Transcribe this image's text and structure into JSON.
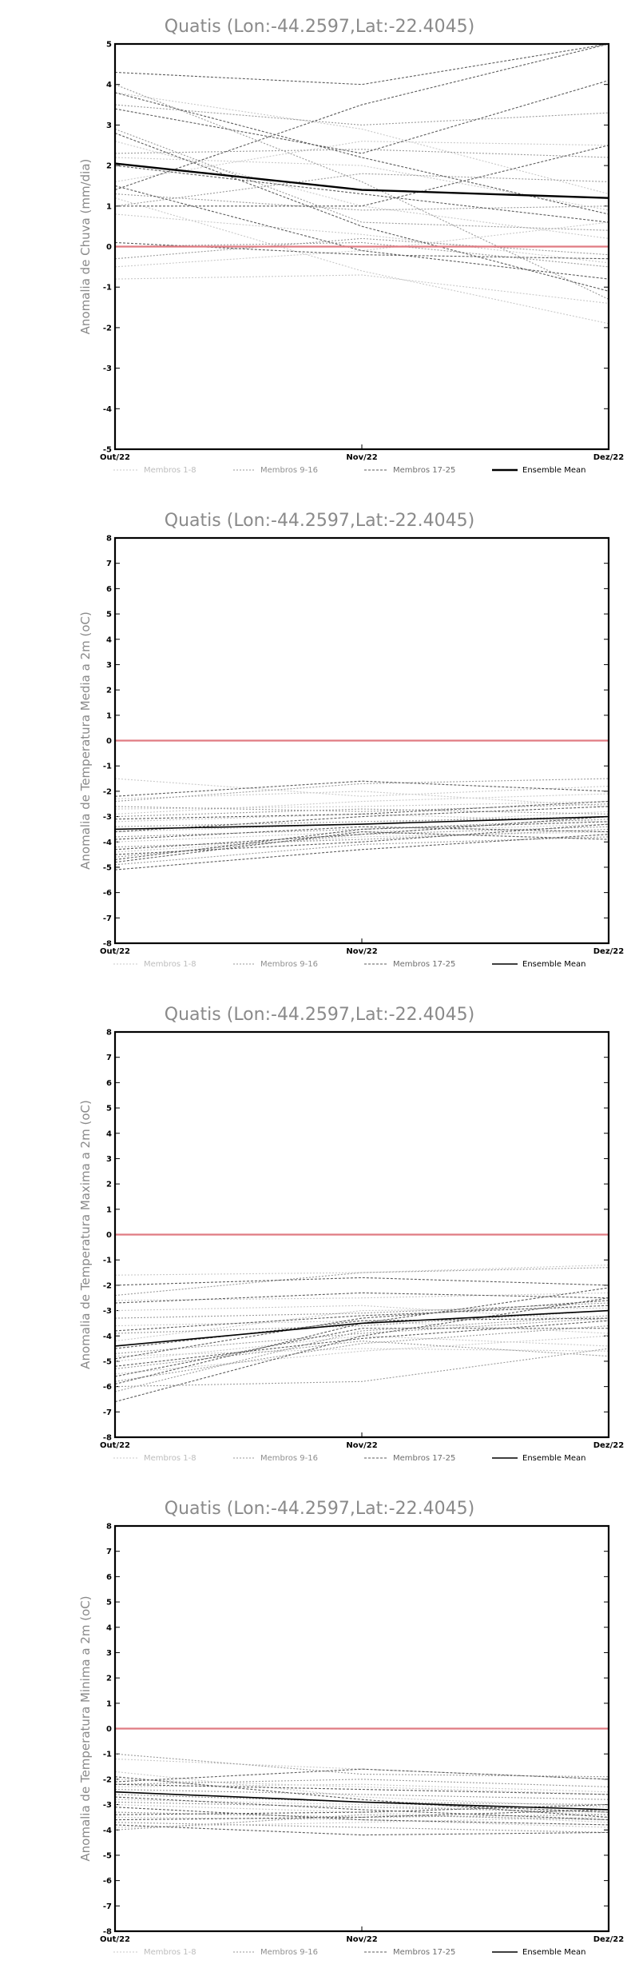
{
  "chart_data": [
    {
      "type": "line",
      "title": "Quatis (Lon:-44.2597,Lat:-22.4045)",
      "ylabel": "Anomalia de Chuva (mm/dia)",
      "x": [
        "Out/22",
        "Nov/22",
        "Dez/22"
      ],
      "ylim": [
        -5,
        5
      ],
      "yticks": [
        -5,
        -4,
        -3,
        -2,
        -1,
        0,
        1,
        2,
        3,
        4,
        5
      ],
      "reference_line": 0,
      "legend": [
        "Membros 1-8",
        "Membros 9-16",
        "Membros 17-25",
        "Ensemble Mean"
      ],
      "legend_placement": "bottom",
      "ensemble_mean": [
        2.05,
        1.4,
        1.2
      ],
      "members": [
        {
          "group": 1,
          "values": [
            3.8,
            2.9,
            1.3
          ]
        },
        {
          "group": 1,
          "values": [
            2.6,
            1.0,
            0.2
          ]
        },
        {
          "group": 1,
          "values": [
            1.2,
            -0.6,
            -1.9
          ]
        },
        {
          "group": 1,
          "values": [
            -0.5,
            -0.1,
            0.6
          ]
        },
        {
          "group": 1,
          "values": [
            2.2,
            2.0,
            0.9
          ]
        },
        {
          "group": 1,
          "values": [
            0.8,
            0.3,
            -0.4
          ]
        },
        {
          "group": 1,
          "values": [
            -0.8,
            -0.7,
            -1.4
          ]
        },
        {
          "group": 1,
          "values": [
            1.6,
            2.6,
            2.5
          ]
        },
        {
          "group": 2,
          "values": [
            3.5,
            3.0,
            3.3
          ]
        },
        {
          "group": 2,
          "values": [
            1.0,
            1.8,
            1.6
          ]
        },
        {
          "group": 2,
          "values": [
            2.9,
            0.6,
            0.4
          ]
        },
        {
          "group": 2,
          "values": [
            0.0,
            0.1,
            -0.5
          ]
        },
        {
          "group": 2,
          "values": [
            1.3,
            0.9,
            1.0
          ]
        },
        {
          "group": 2,
          "values": [
            2.3,
            2.4,
            2.2
          ]
        },
        {
          "group": 2,
          "values": [
            -0.3,
            0.2,
            -0.2
          ]
        },
        {
          "group": 2,
          "values": [
            4.0,
            1.6,
            -1.3
          ]
        },
        {
          "group": 3,
          "values": [
            4.3,
            4.0,
            5.0
          ]
        },
        {
          "group": 3,
          "values": [
            3.8,
            2.2,
            0.8
          ]
        },
        {
          "group": 3,
          "values": [
            1.4,
            3.5,
            5.0
          ]
        },
        {
          "group": 3,
          "values": [
            2.8,
            0.5,
            -1.1
          ]
        },
        {
          "group": 3,
          "values": [
            0.1,
            -0.2,
            -0.3
          ]
        },
        {
          "group": 3,
          "values": [
            1.0,
            1.0,
            2.5
          ]
        },
        {
          "group": 3,
          "values": [
            3.4,
            2.3,
            4.1
          ]
        },
        {
          "group": 3,
          "values": [
            2.0,
            1.3,
            0.6
          ]
        },
        {
          "group": 3,
          "values": [
            1.5,
            -0.1,
            -0.8
          ]
        }
      ]
    },
    {
      "type": "line",
      "title": "Quatis (Lon:-44.2597,Lat:-22.4045)",
      "ylabel": "Anomalia de Temperatura Media a 2m (oC)",
      "x": [
        "Out/22",
        "Nov/22",
        "Dez/22"
      ],
      "ylim": [
        -8,
        8
      ],
      "yticks": [
        -8,
        -7,
        -6,
        -5,
        -4,
        -3,
        -2,
        -1,
        0,
        1,
        2,
        3,
        4,
        5,
        6,
        7,
        8
      ],
      "reference_line": 0,
      "legend": [
        "Membros 1-8",
        "Membros 9-16",
        "Membros 17-25",
        "Ensemble Mean"
      ],
      "legend_placement": "bottom",
      "ensemble_mean": [
        -3.5,
        -3.3,
        -3.0
      ],
      "members": [
        {
          "group": 1,
          "values": [
            -1.5,
            -2.2,
            -1.8
          ]
        },
        {
          "group": 1,
          "values": [
            -2.7,
            -2.6,
            -2.4
          ]
        },
        {
          "group": 1,
          "values": [
            -3.2,
            -2.9,
            -3.2
          ]
        },
        {
          "group": 1,
          "values": [
            -4.0,
            -3.6,
            -3.3
          ]
        },
        {
          "group": 1,
          "values": [
            -2.9,
            -2.4,
            -2.1
          ]
        },
        {
          "group": 1,
          "values": [
            -4.4,
            -3.8,
            -3.6
          ]
        },
        {
          "group": 1,
          "values": [
            -3.6,
            -3.3,
            -2.8
          ]
        },
        {
          "group": 1,
          "values": [
            -2.3,
            -2.0,
            -2.6
          ]
        },
        {
          "group": 2,
          "values": [
            -2.4,
            -1.7,
            -1.5
          ]
        },
        {
          "group": 2,
          "values": [
            -3.8,
            -3.5,
            -3.1
          ]
        },
        {
          "group": 2,
          "values": [
            -4.2,
            -3.9,
            -3.5
          ]
        },
        {
          "group": 2,
          "values": [
            -3.0,
            -2.7,
            -2.9
          ]
        },
        {
          "group": 2,
          "values": [
            -4.6,
            -3.7,
            -3.4
          ]
        },
        {
          "group": 2,
          "values": [
            -3.4,
            -3.2,
            -3.0
          ]
        },
        {
          "group": 2,
          "values": [
            -2.6,
            -2.8,
            -2.5
          ]
        },
        {
          "group": 2,
          "values": [
            -4.9,
            -4.1,
            -3.8
          ]
        },
        {
          "group": 3,
          "values": [
            -2.2,
            -1.6,
            -2.0
          ]
        },
        {
          "group": 3,
          "values": [
            -4.7,
            -3.5,
            -3.2
          ]
        },
        {
          "group": 3,
          "values": [
            -5.1,
            -4.3,
            -3.7
          ]
        },
        {
          "group": 3,
          "values": [
            -3.9,
            -3.4,
            -3.6
          ]
        },
        {
          "group": 3,
          "values": [
            -4.5,
            -4.0,
            -3.3
          ]
        },
        {
          "group": 3,
          "values": [
            -3.6,
            -3.0,
            -2.6
          ]
        },
        {
          "group": 3,
          "values": [
            -4.3,
            -3.7,
            -3.0
          ]
        },
        {
          "group": 3,
          "values": [
            -4.8,
            -3.6,
            -3.9
          ]
        },
        {
          "group": 3,
          "values": [
            -3.1,
            -2.9,
            -2.4
          ]
        }
      ]
    },
    {
      "type": "line",
      "title": "Quatis (Lon:-44.2597,Lat:-22.4045)",
      "ylabel": "Anomalia de Temperatura Maxima a 2m (oC)",
      "x": [
        "Out/22",
        "Nov/22",
        "Dez/22"
      ],
      "ylim": [
        -8,
        8
      ],
      "yticks": [
        -8,
        -7,
        -6,
        -5,
        -4,
        -3,
        -2,
        -1,
        0,
        1,
        2,
        3,
        4,
        5,
        6,
        7,
        8
      ],
      "reference_line": 0,
      "legend": [
        "Membros 1-8",
        "Membros 9-16",
        "Membros 17-25",
        "Ensemble Mean"
      ],
      "legend_placement": "bottom",
      "ensemble_mean": [
        -4.4,
        -3.5,
        -3.0
      ],
      "members": [
        {
          "group": 1,
          "values": [
            -1.6,
            -1.5,
            -1.2
          ]
        },
        {
          "group": 1,
          "values": [
            -3.0,
            -2.8,
            -3.4
          ]
        },
        {
          "group": 1,
          "values": [
            -4.8,
            -4.5,
            -4.6
          ]
        },
        {
          "group": 1,
          "values": [
            -5.5,
            -4.6,
            -4.0
          ]
        },
        {
          "group": 1,
          "values": [
            -3.6,
            -3.4,
            -3.9
          ]
        },
        {
          "group": 1,
          "values": [
            -2.6,
            -2.5,
            -2.3
          ]
        },
        {
          "group": 1,
          "values": [
            -4.2,
            -3.0,
            -2.9
          ]
        },
        {
          "group": 1,
          "values": [
            -5.0,
            -4.0,
            -4.4
          ]
        },
        {
          "group": 2,
          "values": [
            -2.4,
            -1.5,
            -1.3
          ]
        },
        {
          "group": 2,
          "values": [
            -5.8,
            -4.3,
            -3.6
          ]
        },
        {
          "group": 2,
          "values": [
            -6.2,
            -3.8,
            -3.2
          ]
        },
        {
          "group": 2,
          "values": [
            -3.3,
            -3.1,
            -2.7
          ]
        },
        {
          "group": 2,
          "values": [
            -4.7,
            -3.9,
            -3.3
          ]
        },
        {
          "group": 2,
          "values": [
            -5.3,
            -4.2,
            -4.8
          ]
        },
        {
          "group": 2,
          "values": [
            -3.9,
            -3.6,
            -3.0
          ]
        },
        {
          "group": 2,
          "values": [
            -6.0,
            -5.8,
            -4.5
          ]
        },
        {
          "group": 3,
          "values": [
            -2.0,
            -1.7,
            -2.0
          ]
        },
        {
          "group": 3,
          "values": [
            -6.6,
            -4.0,
            -2.5
          ]
        },
        {
          "group": 3,
          "values": [
            -5.9,
            -3.5,
            -2.1
          ]
        },
        {
          "group": 3,
          "values": [
            -4.5,
            -3.4,
            -3.3
          ]
        },
        {
          "group": 3,
          "values": [
            -5.6,
            -3.7,
            -3.7
          ]
        },
        {
          "group": 3,
          "values": [
            -3.8,
            -3.2,
            -2.8
          ]
        },
        {
          "group": 3,
          "values": [
            -5.2,
            -4.1,
            -3.4
          ]
        },
        {
          "group": 3,
          "values": [
            -2.7,
            -2.3,
            -2.5
          ]
        },
        {
          "group": 3,
          "values": [
            -4.9,
            -3.3,
            -2.6
          ]
        }
      ]
    },
    {
      "type": "line",
      "title": "Quatis (Lon:-44.2597,Lat:-22.4045)",
      "ylabel": "Anomalia de Temperatura Minima a 2m (oC)",
      "x": [
        "Out/22",
        "Nov/22",
        "Dez/22"
      ],
      "ylim": [
        -8,
        8
      ],
      "yticks": [
        -8,
        -7,
        -6,
        -5,
        -4,
        -3,
        -2,
        -1,
        0,
        1,
        2,
        3,
        4,
        5,
        6,
        7,
        8
      ],
      "reference_line": 0,
      "legend": [
        "Membros 1-8",
        "Membros 9-16",
        "Membros 17-25",
        "Ensemble Mean"
      ],
      "legend_placement": "bottom",
      "ensemble_mean": [
        -2.5,
        -2.9,
        -3.2
      ],
      "members": [
        {
          "group": 1,
          "values": [
            -1.2,
            -1.6,
            -2.0
          ]
        },
        {
          "group": 1,
          "values": [
            -2.0,
            -2.3,
            -2.6
          ]
        },
        {
          "group": 1,
          "values": [
            -2.8,
            -3.0,
            -3.4
          ]
        },
        {
          "group": 1,
          "values": [
            -3.5,
            -3.6,
            -3.9
          ]
        },
        {
          "group": 1,
          "values": [
            -2.3,
            -2.2,
            -2.5
          ]
        },
        {
          "group": 1,
          "values": [
            -3.9,
            -3.7,
            -3.5
          ]
        },
        {
          "group": 1,
          "values": [
            -1.7,
            -2.7,
            -3.1
          ]
        },
        {
          "group": 1,
          "values": [
            -3.0,
            -3.3,
            -3.7
          ]
        },
        {
          "group": 2,
          "values": [
            -1.0,
            -1.8,
            -1.9
          ]
        },
        {
          "group": 2,
          "values": [
            -2.6,
            -2.9,
            -3.0
          ]
        },
        {
          "group": 2,
          "values": [
            -3.3,
            -3.5,
            -3.4
          ]
        },
        {
          "group": 2,
          "values": [
            -2.2,
            -2.0,
            -2.3
          ]
        },
        {
          "group": 2,
          "values": [
            -3.7,
            -3.9,
            -4.1
          ]
        },
        {
          "group": 2,
          "values": [
            -2.9,
            -3.1,
            -3.3
          ]
        },
        {
          "group": 2,
          "values": [
            -4.0,
            -3.4,
            -3.6
          ]
        },
        {
          "group": 2,
          "values": [
            -2.4,
            -2.6,
            -2.8
          ]
        },
        {
          "group": 3,
          "values": [
            -2.1,
            -1.6,
            -2.0
          ]
        },
        {
          "group": 3,
          "values": [
            -2.7,
            -3.2,
            -3.6
          ]
        },
        {
          "group": 3,
          "values": [
            -3.4,
            -3.3,
            -3.0
          ]
        },
        {
          "group": 3,
          "values": [
            -3.8,
            -4.2,
            -4.1
          ]
        },
        {
          "group": 3,
          "values": [
            -2.5,
            -2.9,
            -3.3
          ]
        },
        {
          "group": 3,
          "values": [
            -3.1,
            -3.6,
            -3.8
          ]
        },
        {
          "group": 3,
          "values": [
            -2.2,
            -2.4,
            -2.6
          ]
        },
        {
          "group": 3,
          "values": [
            -3.6,
            -3.5,
            -3.2
          ]
        },
        {
          "group": 3,
          "values": [
            -1.9,
            -2.8,
            -3.5
          ]
        }
      ]
    }
  ]
}
